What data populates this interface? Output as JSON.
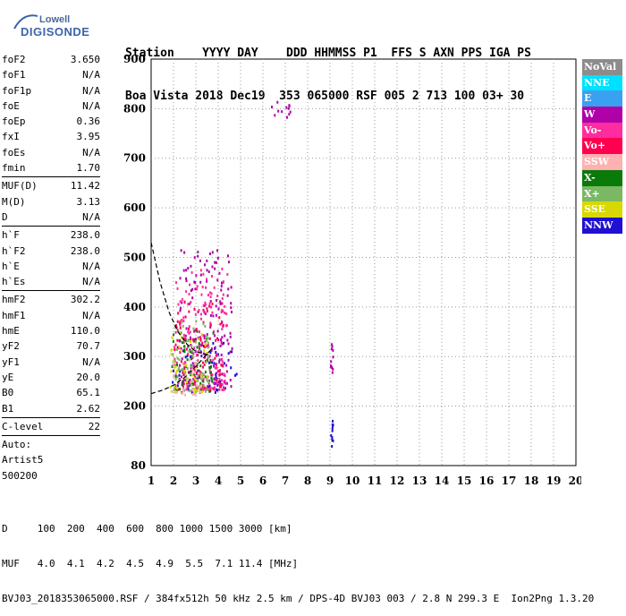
{
  "logo": {
    "line1": "Lowell",
    "line2": "DIGISONDE"
  },
  "header": {
    "line1": "Station    YYYY DAY    DDD HHMMSS P1  FFS S AXN PPS IGA PS",
    "line2": "Boa Vista 2018 Dec19  353 065000 RSF 005 2 713 100 03+ 30"
  },
  "params": [
    {
      "label": "foF2",
      "value": "3.650"
    },
    {
      "label": "foF1",
      "value": "N/A"
    },
    {
      "label": "foF1p",
      "value": "N/A"
    },
    {
      "label": "foE",
      "value": "N/A"
    },
    {
      "label": "foEp",
      "value": "0.36"
    },
    {
      "label": "fxI",
      "value": "3.95"
    },
    {
      "label": "foEs",
      "value": "N/A"
    },
    {
      "label": "fmin",
      "value": "1.70"
    },
    {
      "sep": true
    },
    {
      "label": "MUF(D)",
      "value": "11.42"
    },
    {
      "label": "M(D)",
      "value": "3.13"
    },
    {
      "label": "D",
      "value": "N/A"
    },
    {
      "sep": true
    },
    {
      "label": "h`F",
      "value": "238.0"
    },
    {
      "label": "h`F2",
      "value": "238.0"
    },
    {
      "label": "h`E",
      "value": "N/A"
    },
    {
      "label": "h`Es",
      "value": "N/A"
    },
    {
      "sep": true
    },
    {
      "label": "hmF2",
      "value": "302.2"
    },
    {
      "label": "hmF1",
      "value": "N/A"
    },
    {
      "label": "hmE",
      "value": "110.0"
    },
    {
      "label": "yF2",
      "value": "70.7"
    },
    {
      "label": "yF1",
      "value": "N/A"
    },
    {
      "label": "yE",
      "value": "20.0"
    },
    {
      "label": "B0",
      "value": "65.1"
    },
    {
      "label": "B1",
      "value": "2.62"
    },
    {
      "sep": true
    },
    {
      "label": "C-level",
      "value": "22"
    },
    {
      "sep": true
    },
    {
      "label": "Auto:",
      "value": ""
    },
    {
      "label": "Artist5",
      "value": ""
    },
    {
      "label": "500200",
      "value": ""
    }
  ],
  "legend": [
    {
      "label": "NoVal",
      "color": "#8c8c8c"
    },
    {
      "label": "NNE",
      "color": "#00e0ff"
    },
    {
      "label": "E",
      "color": "#3aa0f0"
    },
    {
      "label": "W",
      "color": "#b000a8"
    },
    {
      "label": "Vo-",
      "color": "#ff2ca0"
    },
    {
      "label": "Vo+",
      "color": "#ff0050"
    },
    {
      "label": "SSW",
      "color": "#ffb0b0"
    },
    {
      "label": "X-",
      "color": "#0a7a0a"
    },
    {
      "label": "X+",
      "color": "#7ab864"
    },
    {
      "label": "SSE",
      "color": "#d8d800"
    },
    {
      "label": "NNW",
      "color": "#2010d0"
    }
  ],
  "footer": {
    "line1": "D     100  200  400  600  800 1000 1500 3000 [km]",
    "line2": "MUF   4.0  4.1  4.2  4.5  4.9  5.5  7.1 11.4 [MHz]",
    "line3": "BVJ03_2018353065000.RSF / 384fx512h 50 kHz 2.5 km / DPS-4D BVJ03 003 / 2.8 N 299.3 E  Ion2Png 1.3.20"
  },
  "chart_data": {
    "type": "scatter",
    "xlim": [
      1,
      20
    ],
    "ylim": [
      80,
      900
    ],
    "xticks": [
      1,
      2,
      3,
      4,
      5,
      6,
      7,
      8,
      9,
      10,
      11,
      12,
      13,
      14,
      15,
      16,
      17,
      18,
      19,
      20
    ],
    "yticks": [
      80,
      200,
      300,
      400,
      500,
      600,
      700,
      800,
      900
    ],
    "grid": "dotted",
    "clusters": [
      {
        "color": "#2010d0",
        "x": [
          1.9,
          4.8
        ],
        "y": [
          230,
          330
        ]
      },
      {
        "color": "#b000a8",
        "x": [
          2.2,
          4.6
        ],
        "y": [
          240,
          520
        ]
      },
      {
        "color": "#ff2ca0",
        "x": [
          2.0,
          4.4
        ],
        "y": [
          235,
          480
        ]
      },
      {
        "color": "#ff0050",
        "x": [
          2.0,
          4.2
        ],
        "y": [
          235,
          420
        ]
      },
      {
        "color": "#0a7a0a",
        "x": [
          1.9,
          3.8
        ],
        "y": [
          230,
          360
        ]
      },
      {
        "color": "#7ab864",
        "x": [
          1.9,
          3.6
        ],
        "y": [
          232,
          380
        ]
      },
      {
        "color": "#d8d800",
        "x": [
          1.8,
          3.5
        ],
        "y": [
          230,
          350
        ]
      },
      {
        "color": "#ffb0b0",
        "x": [
          1.8,
          3.2
        ],
        "y": [
          225,
          300
        ]
      },
      {
        "color": "#b000a8",
        "x": [
          6.2,
          7.4
        ],
        "y": [
          785,
          820
        ]
      },
      {
        "color": "#b000a8",
        "x": [
          9.0,
          9.1
        ],
        "y": [
          270,
          340
        ]
      },
      {
        "color": "#2010d0",
        "x": [
          9.0,
          9.1
        ],
        "y": [
          120,
          180
        ]
      }
    ],
    "trace": {
      "x": [
        1.0,
        1.4,
        1.8,
        2.2,
        2.6,
        3.0,
        3.4,
        3.6
      ],
      "y": [
        530,
        450,
        390,
        350,
        325,
        310,
        305,
        303
      ]
    },
    "trace2": {
      "x": [
        1.0,
        1.5,
        2.0,
        2.5,
        3.0,
        3.4,
        3.7
      ],
      "y": [
        225,
        232,
        242,
        258,
        280,
        300,
        315
      ]
    }
  }
}
